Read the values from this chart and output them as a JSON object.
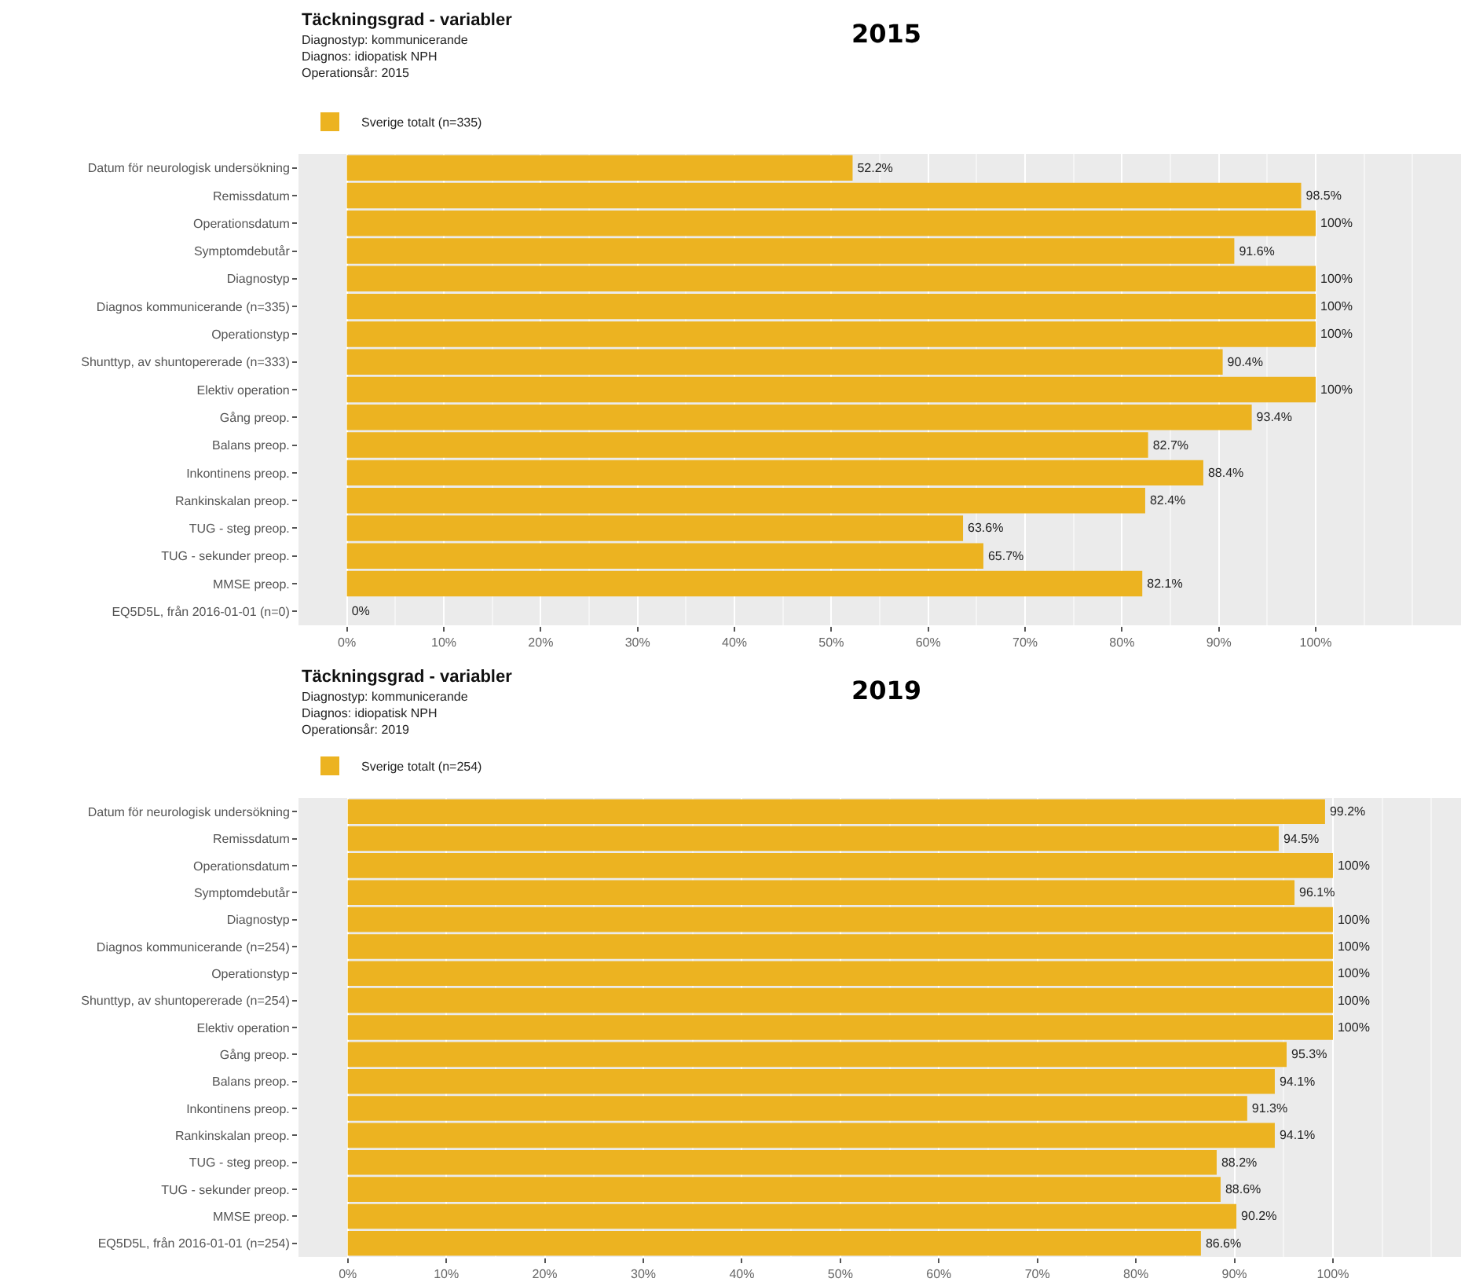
{
  "chart_data": [
    {
      "type": "bar",
      "orientation": "horizontal",
      "title": "Täckningsgrad - variabler",
      "subtitle": "Diagnostyp: kommunicerande\nDiagnos: idiopatisk NPH\nOperationsår: 2015",
      "annotations": [
        "2015"
      ],
      "categories": [
        "Datum för neurologisk undersökning",
        "Remissdatum",
        "Operationsdatum",
        "Symptomdebutår",
        "Diagnostyp",
        "Diagnos kommunicerande (n=335)",
        "Operationstyp",
        "Shunttyp, av shuntopererade (n=333)",
        "Elektiv operation",
        "Gång preop.",
        "Balans preop.",
        "Inkontinens preop.",
        "Rankinskalan preop.",
        "TUG - steg preop.",
        "TUG - sekunder preop.",
        "MMSE preop.",
        "EQ5D5L, från 2016-01-01 (n=0)"
      ],
      "series": [
        {
          "name": "Sverige totalt (n=335)",
          "color": "#ecb321",
          "values": [
            52.2,
            98.5,
            100,
            91.6,
            100,
            100,
            100,
            90.4,
            100,
            93.4,
            82.7,
            88.4,
            82.4,
            63.6,
            65.7,
            82.1,
            0
          ],
          "value_labels": [
            "52.2%",
            "98.5%",
            "100%",
            "91.6%",
            "100%",
            "100%",
            "100%",
            "90.4%",
            "100%",
            "93.4%",
            "82.7%",
            "88.4%",
            "82.4%",
            "63.6%",
            "65.7%",
            "82.1%",
            "0%"
          ]
        }
      ],
      "xlim": [
        -5,
        115
      ],
      "xticks": [
        {
          "value": 0,
          "label": "0%"
        },
        {
          "value": 10,
          "label": "10%"
        },
        {
          "value": 20,
          "label": "20%"
        },
        {
          "value": 30,
          "label": "30%"
        },
        {
          "value": 40,
          "label": "40%"
        },
        {
          "value": 50,
          "label": "50%"
        },
        {
          "value": 60,
          "label": "60%"
        },
        {
          "value": 70,
          "label": "70%"
        },
        {
          "value": 80,
          "label": "80%"
        },
        {
          "value": 90,
          "label": "90%"
        },
        {
          "value": 100,
          "label": "100%"
        }
      ],
      "grid": "x",
      "legend": "top left"
    },
    {
      "type": "bar",
      "orientation": "horizontal",
      "title": "Täckningsgrad - variabler",
      "subtitle": "Diagnostyp: kommunicerande\nDiagnos: idiopatisk NPH\nOperationsår: 2019",
      "annotations": [
        "2019"
      ],
      "categories": [
        "Datum för neurologisk undersökning",
        "Remissdatum",
        "Operationsdatum",
        "Symptomdebutår",
        "Diagnostyp",
        "Diagnos kommunicerande (n=254)",
        "Operationstyp",
        "Shunttyp, av shuntopererade (n=254)",
        "Elektiv operation",
        "Gång preop.",
        "Balans preop.",
        "Inkontinens preop.",
        "Rankinskalan preop.",
        "TUG - steg preop.",
        "TUG - sekunder preop.",
        "MMSE preop.",
        "EQ5D5L, från 2016-01-01 (n=254)"
      ],
      "series": [
        {
          "name": "Sverige totalt (n=254)",
          "color": "#ecb321",
          "values": [
            99.2,
            94.5,
            100,
            96.1,
            100,
            100,
            100,
            100,
            100,
            95.3,
            94.1,
            91.3,
            94.1,
            88.2,
            88.6,
            90.2,
            86.6
          ],
          "value_labels": [
            "99.2%",
            "94.5%",
            "100%",
            "96.1%",
            "100%",
            "100%",
            "100%",
            "100%",
            "100%",
            "95.3%",
            "94.1%",
            "91.3%",
            "94.1%",
            "88.2%",
            "88.6%",
            "90.2%",
            "86.6%"
          ]
        }
      ],
      "xlim": [
        -5,
        113
      ],
      "xticks": [
        {
          "value": 0,
          "label": "0%"
        },
        {
          "value": 10,
          "label": "10%"
        },
        {
          "value": 20,
          "label": "20%"
        },
        {
          "value": 30,
          "label": "30%"
        },
        {
          "value": 40,
          "label": "40%"
        },
        {
          "value": 50,
          "label": "50%"
        },
        {
          "value": 60,
          "label": "60%"
        },
        {
          "value": 70,
          "label": "70%"
        },
        {
          "value": 80,
          "label": "80%"
        },
        {
          "value": 90,
          "label": "90%"
        },
        {
          "value": 100,
          "label": "100%"
        }
      ],
      "grid": "x",
      "legend": "top left"
    }
  ]
}
